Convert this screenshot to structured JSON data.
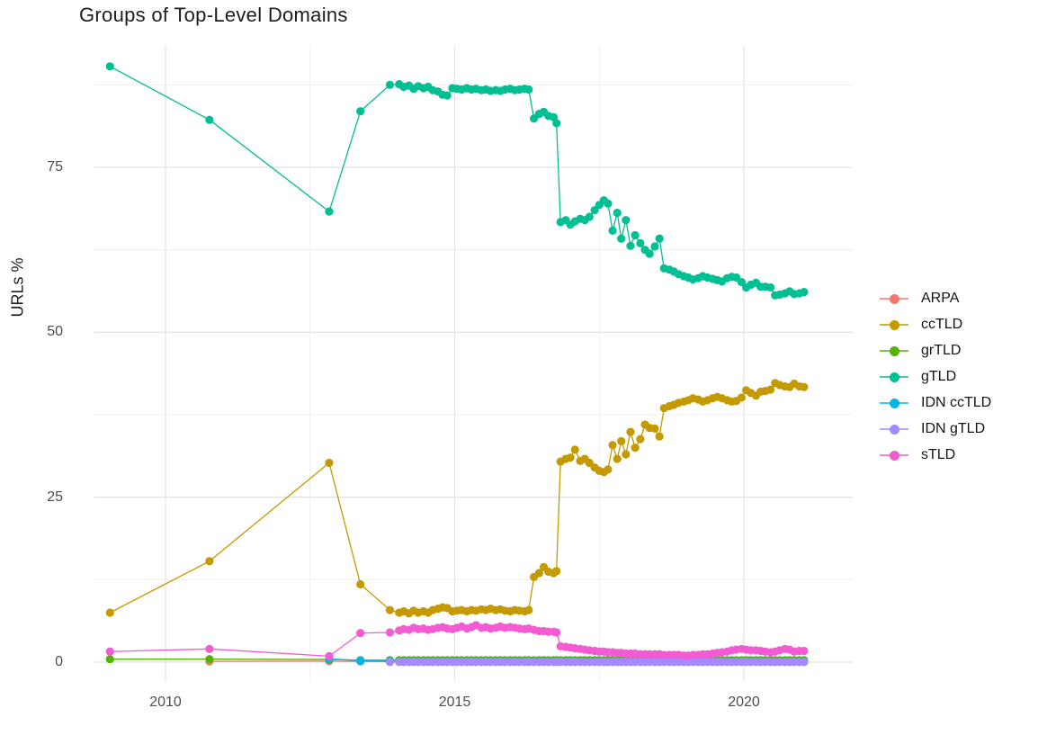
{
  "chart_data": {
    "type": "line",
    "title": "Groups of Top-Level Domains",
    "xlabel": "",
    "ylabel": "URLs %",
    "grid": "major+minor",
    "legend_position": "right",
    "x_ticks": [
      2010,
      2015,
      2020
    ],
    "x_tick_labels": [
      "2010",
      "2015",
      "2020"
    ],
    "x_minor_ticks": [
      2012.5,
      2017.5
    ],
    "y_ticks": [
      0,
      25,
      50,
      75
    ],
    "y_tick_labels": [
      "0",
      "25",
      "50",
      "75"
    ],
    "y_minor_ticks": [
      12.5,
      37.5,
      62.5,
      87.5
    ],
    "xlim": [
      2008.8,
      2021.9
    ],
    "ylim": [
      -3,
      93
    ],
    "x_dense": [
      2014.04,
      2014.12,
      2014.21,
      2014.29,
      2014.37,
      2014.46,
      2014.54,
      2014.62,
      2014.71,
      2014.79,
      2014.87,
      2014.96,
      2015.04,
      2015.12,
      2015.21,
      2015.29,
      2015.37,
      2015.46,
      2015.54,
      2015.62,
      2015.71,
      2015.79,
      2015.87,
      2015.96,
      2016.04,
      2016.12,
      2016.21,
      2016.28,
      2016.37,
      2016.46,
      2016.54,
      2016.62,
      2016.71,
      2016.76,
      2016.83,
      2016.92,
      2017.0,
      2017.08,
      2017.17,
      2017.25,
      2017.33,
      2017.42,
      2017.5,
      2017.58,
      2017.65,
      2017.73,
      2017.81,
      2017.88,
      2017.96,
      2018.04,
      2018.12,
      2018.21,
      2018.29,
      2018.37,
      2018.46,
      2018.54,
      2018.62,
      2018.71,
      2018.79,
      2018.87,
      2018.96,
      2019.04,
      2019.12,
      2019.21,
      2019.29,
      2019.37,
      2019.46,
      2019.54,
      2019.62,
      2019.71,
      2019.79,
      2019.87,
      2019.96,
      2020.04,
      2020.12,
      2020.21,
      2020.29,
      2020.37,
      2020.46,
      2020.54,
      2020.62,
      2020.71,
      2020.79,
      2020.87,
      2020.96,
      2021.04
    ],
    "series": [
      {
        "name": "ARPA",
        "color": "#F8766D",
        "sparse": [
          [
            2010.76,
            0.12
          ],
          [
            2012.83,
            0.15
          ],
          [
            2013.37,
            0.1
          ],
          [
            2013.88,
            0.08
          ]
        ],
        "dense_const": 0.05
      },
      {
        "name": "ccTLD",
        "color": "#C49A00",
        "sparse": [
          [
            2009.04,
            7.5
          ],
          [
            2010.76,
            15.3
          ],
          [
            2012.83,
            30.2
          ],
          [
            2013.37,
            11.8
          ],
          [
            2013.88,
            7.9
          ]
        ],
        "dense": [
          7.5,
          7.7,
          7.4,
          7.8,
          7.5,
          7.7,
          7.5,
          7.9,
          8.1,
          8.3,
          8.2,
          7.7,
          7.8,
          7.9,
          7.7,
          7.9,
          7.8,
          8.0,
          7.9,
          8.1,
          7.9,
          8.0,
          7.8,
          7.7,
          7.9,
          7.8,
          7.7,
          7.9,
          12.9,
          13.5,
          14.4,
          13.7,
          13.5,
          13.8,
          30.4,
          30.8,
          31.0,
          32.2,
          30.5,
          30.8,
          30.2,
          29.5,
          29.0,
          28.8,
          29.2,
          32.9,
          30.8,
          33.5,
          31.5,
          34.9,
          32.5,
          33.8,
          36.0,
          35.5,
          35.4,
          34.2,
          38.5,
          38.8,
          39.0,
          39.3,
          39.5,
          39.7,
          40.0,
          39.8,
          39.5,
          39.7,
          40.0,
          40.2,
          40.0,
          39.7,
          39.5,
          39.6,
          40.1,
          41.2,
          40.8,
          40.4,
          41.0,
          41.1,
          41.3,
          42.3,
          42.0,
          41.8,
          41.7,
          42.2,
          41.8,
          41.7
        ]
      },
      {
        "name": "grTLD",
        "color": "#53B400",
        "sparse": [
          [
            2009.04,
            0.45
          ],
          [
            2010.76,
            0.45
          ],
          [
            2012.83,
            0.4
          ],
          [
            2013.37,
            0.3
          ],
          [
            2013.88,
            0.3
          ]
        ],
        "dense_const": 0.3
      },
      {
        "name": "gTLD",
        "color": "#00BF93",
        "sparse": [
          [
            2009.04,
            90.3
          ],
          [
            2010.76,
            82.2
          ],
          [
            2012.83,
            68.3
          ],
          [
            2013.37,
            83.5
          ],
          [
            2013.88,
            87.5
          ]
        ],
        "dense": [
          87.6,
          87.2,
          87.4,
          86.9,
          87.3,
          87.0,
          87.2,
          86.7,
          86.5,
          86.0,
          85.9,
          87.0,
          86.9,
          86.8,
          87.0,
          86.8,
          86.9,
          86.7,
          86.8,
          86.6,
          86.7,
          86.6,
          86.8,
          86.9,
          86.7,
          86.8,
          86.9,
          86.8,
          82.4,
          83.1,
          83.4,
          82.8,
          82.6,
          81.7,
          66.7,
          67.0,
          66.3,
          66.8,
          67.2,
          67.0,
          67.5,
          68.5,
          69.3,
          70.0,
          69.5,
          65.4,
          68.1,
          64.2,
          67.0,
          63.1,
          64.7,
          63.5,
          62.5,
          61.9,
          63.0,
          64.2,
          59.7,
          59.5,
          59.2,
          58.8,
          58.5,
          58.3,
          58.0,
          58.2,
          58.5,
          58.3,
          58.1,
          57.9,
          57.7,
          58.2,
          58.4,
          58.3,
          57.6,
          56.8,
          57.2,
          57.5,
          56.9,
          56.9,
          56.8,
          55.6,
          55.7,
          55.9,
          56.2,
          55.8,
          55.9,
          56.1
        ]
      },
      {
        "name": "IDN ccTLD",
        "color": "#00B6EB",
        "sparse": [
          [
            2012.83,
            0.5
          ],
          [
            2013.37,
            0.2
          ],
          [
            2013.88,
            0.15
          ]
        ],
        "dense_const": 0.1
      },
      {
        "name": "IDN gTLD",
        "color": "#A58AFF",
        "sparse": [
          [
            2013.88,
            0.02
          ]
        ],
        "dense_const": 0.02
      },
      {
        "name": "sTLD",
        "color": "#F35BD3",
        "sparse": [
          [
            2009.04,
            1.6
          ],
          [
            2010.76,
            2.0
          ],
          [
            2012.83,
            0.9
          ],
          [
            2013.37,
            4.4
          ],
          [
            2013.88,
            4.5
          ]
        ],
        "dense": [
          4.8,
          5.0,
          4.9,
          5.2,
          5.0,
          5.1,
          4.9,
          5.0,
          5.2,
          5.3,
          5.1,
          5.0,
          5.2,
          5.4,
          5.1,
          5.3,
          5.6,
          5.2,
          5.3,
          5.1,
          5.2,
          5.4,
          5.2,
          5.3,
          5.2,
          5.1,
          5.0,
          5.1,
          4.9,
          4.7,
          4.7,
          4.6,
          4.6,
          4.5,
          2.4,
          2.3,
          2.2,
          2.1,
          2.0,
          1.9,
          1.8,
          1.7,
          1.6,
          1.6,
          1.5,
          1.5,
          1.4,
          1.4,
          1.3,
          1.3,
          1.3,
          1.2,
          1.2,
          1.2,
          1.2,
          1.2,
          1.1,
          1.1,
          1.1,
          1.1,
          1.0,
          1.0,
          1.1,
          1.1,
          1.2,
          1.2,
          1.3,
          1.4,
          1.5,
          1.6,
          1.8,
          1.9,
          2.0,
          1.9,
          1.8,
          1.8,
          1.7,
          1.6,
          1.5,
          1.6,
          1.8,
          2.0,
          1.9,
          1.6,
          1.7,
          1.7
        ]
      }
    ],
    "style": {
      "grid_major_color": "#e4e4e4",
      "grid_minor_color": "#efefef",
      "background": "#ffffff",
      "point_radius": 4.6,
      "line_width": 1.3
    }
  }
}
